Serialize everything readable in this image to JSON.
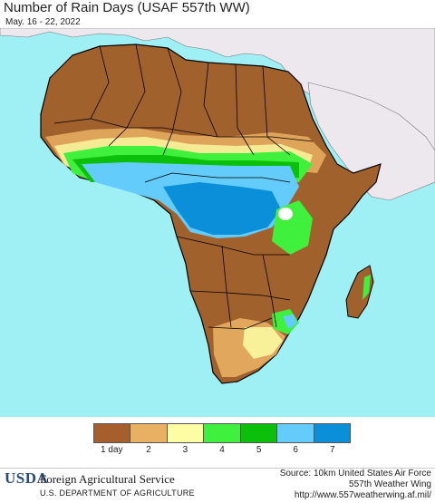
{
  "header": {
    "title": "Number of Rain Days (USAF 557th WW)",
    "date_range": "May. 16 - 22, 2022"
  },
  "map": {
    "ocean_color": "#9ff0f5",
    "land_outside_color": "#ede8ee",
    "base_color": "#a0612d",
    "border_color": "#000000"
  },
  "legend": {
    "colors": [
      "#a65f2c",
      "#e8b063",
      "#fdfda4",
      "#3ff03c",
      "#0cbf0a",
      "#63ccfa",
      "#0a8fd8"
    ],
    "labels": [
      "1 day",
      "2",
      "3",
      "4",
      "5",
      "6",
      "7"
    ]
  },
  "footer": {
    "agency_abbrev": "USDA",
    "agency_name": "Foreign Agricultural Service",
    "department": "U.S. DEPARTMENT OF AGRICULTURE",
    "source_line1": "Source: 10km United States Air Force",
    "source_line2": "557th Weather Wing",
    "source_url": "http://www.557weatherwing.af.mil/"
  }
}
